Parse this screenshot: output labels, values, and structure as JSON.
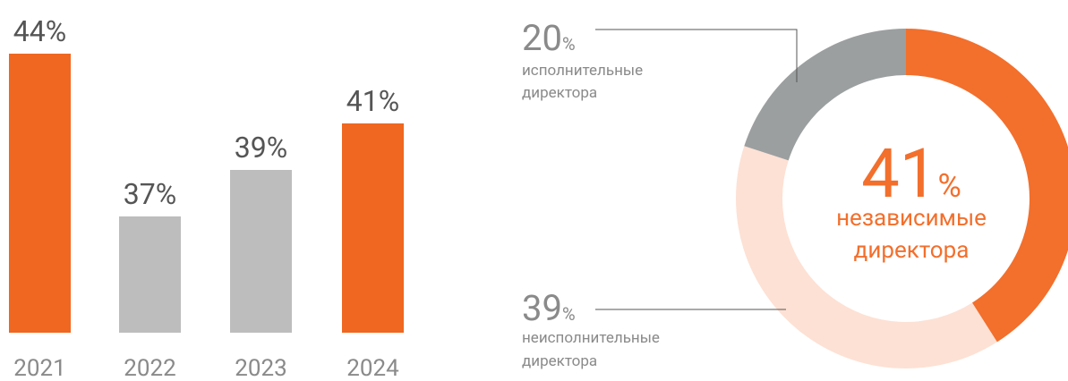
{
  "chart_data": [
    {
      "type": "bar",
      "categories": [
        "2021",
        "2022",
        "2023",
        "2024"
      ],
      "values": [
        44,
        37,
        39,
        41
      ],
      "value_labels": [
        "44%",
        "37%",
        "39%",
        "41%"
      ],
      "colors": [
        "#ef6720",
        "#bdbdbd",
        "#bdbdbd",
        "#ef6720"
      ],
      "ylim": [
        32,
        44
      ]
    },
    {
      "type": "donut",
      "categories": [
        [
          "независимые",
          "директора"
        ],
        [
          "неисполнительные",
          "директора"
        ],
        [
          "исполнительные",
          "директора"
        ]
      ],
      "values": [
        41,
        39,
        20
      ],
      "value_unit": "%",
      "colors": [
        "#f36f2c",
        "#fde1d4",
        "#9b9fa0"
      ]
    }
  ]
}
